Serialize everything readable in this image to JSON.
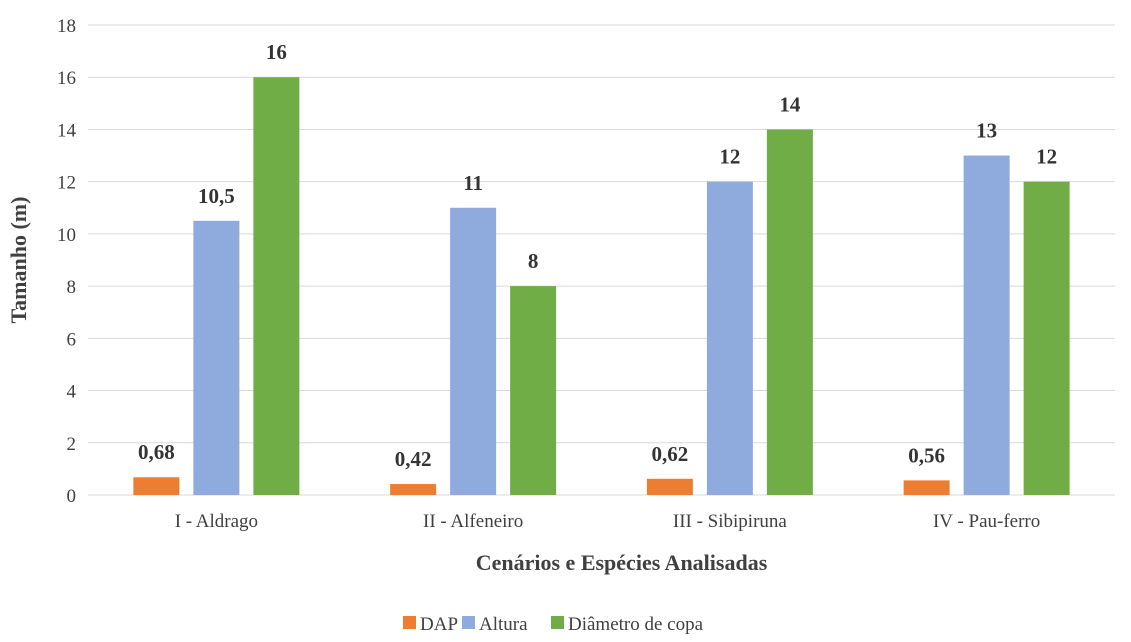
{
  "chart_data": {
    "type": "bar",
    "title": "",
    "xlabel": "Cenários e Espécies Analisadas",
    "ylabel": "Tamanho (m)",
    "ylim": [
      0,
      18
    ],
    "yticks": [
      0,
      2,
      4,
      6,
      8,
      10,
      12,
      14,
      16,
      18
    ],
    "grid": true,
    "legend_position": "bottom",
    "categories": [
      "I - Aldrago",
      "II - Alfeneiro",
      "III - Sibipiruna",
      "IV - Pau-ferro"
    ],
    "series": [
      {
        "name": "DAP",
        "color": "#ED7D31",
        "values": [
          0.68,
          0.42,
          0.62,
          0.56
        ],
        "labels": [
          "0,68",
          "0,42",
          "0,62",
          "0,56"
        ]
      },
      {
        "name": "Altura",
        "color": "#8FAADC",
        "values": [
          10.5,
          11,
          12,
          13
        ],
        "labels": [
          "10,5",
          "11",
          "12",
          "13"
        ]
      },
      {
        "name": "Diâmetro de copa",
        "color": "#70AD47",
        "values": [
          16,
          8,
          14,
          12
        ],
        "labels": [
          "16",
          "8",
          "14",
          "12"
        ]
      }
    ]
  }
}
